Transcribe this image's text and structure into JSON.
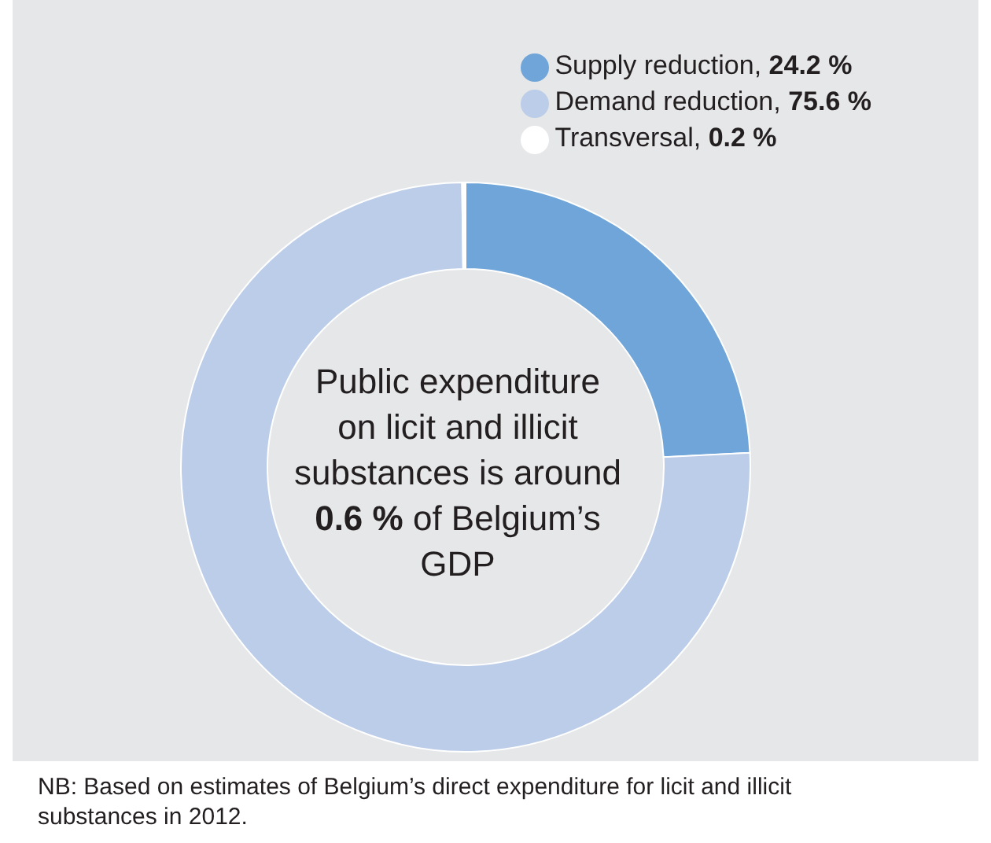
{
  "chart_data": {
    "type": "donut",
    "categories": [
      "Supply reduction, 24.2 %",
      "Demand reduction, 75.6 %",
      "Transversal, 0.2 %"
    ],
    "values": [
      24.2,
      75.6,
      0.2
    ],
    "colors": [
      "#6fa5d8",
      "#bccde9",
      "#ffffff"
    ],
    "legend": "top right",
    "annotations": [
      "Public expenditure on licit and illicit substances is around",
      "0.6 %",
      "of Belgium’s GDP",
      "NB: Based on estimates of Belgium’s direct expenditure for licit and illicit substances in 2012."
    ]
  }
}
